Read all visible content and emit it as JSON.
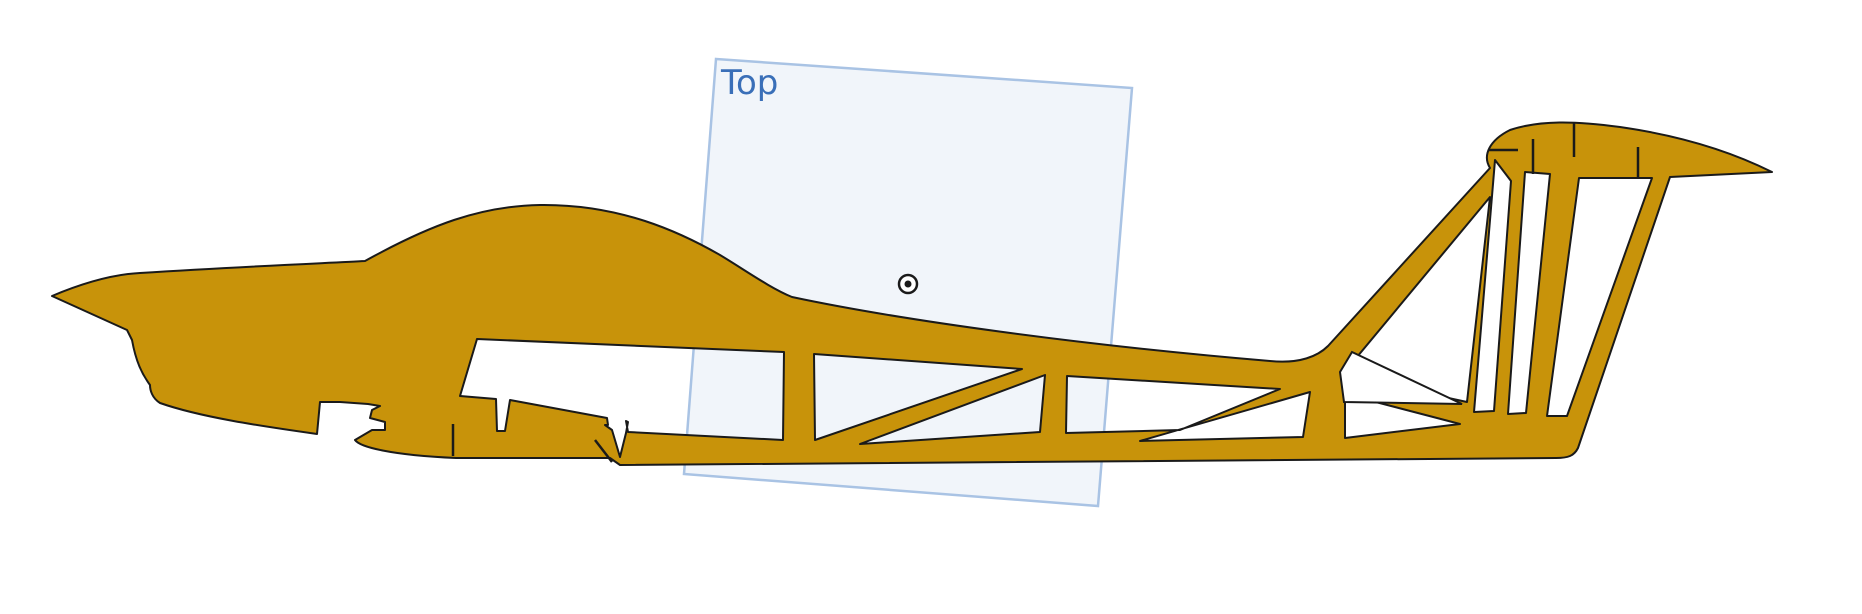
{
  "viewport": {
    "plane_label": "Top",
    "colors": {
      "background": "#ffffff",
      "part_fill": "#c8930a",
      "part_stroke": "#1a1a1a",
      "plane_fill": "#eef3f9",
      "plane_stroke": "#a9c3e4",
      "plane_label": "#3a6fb8"
    },
    "icons": [
      "origin-marker-icon"
    ]
  }
}
